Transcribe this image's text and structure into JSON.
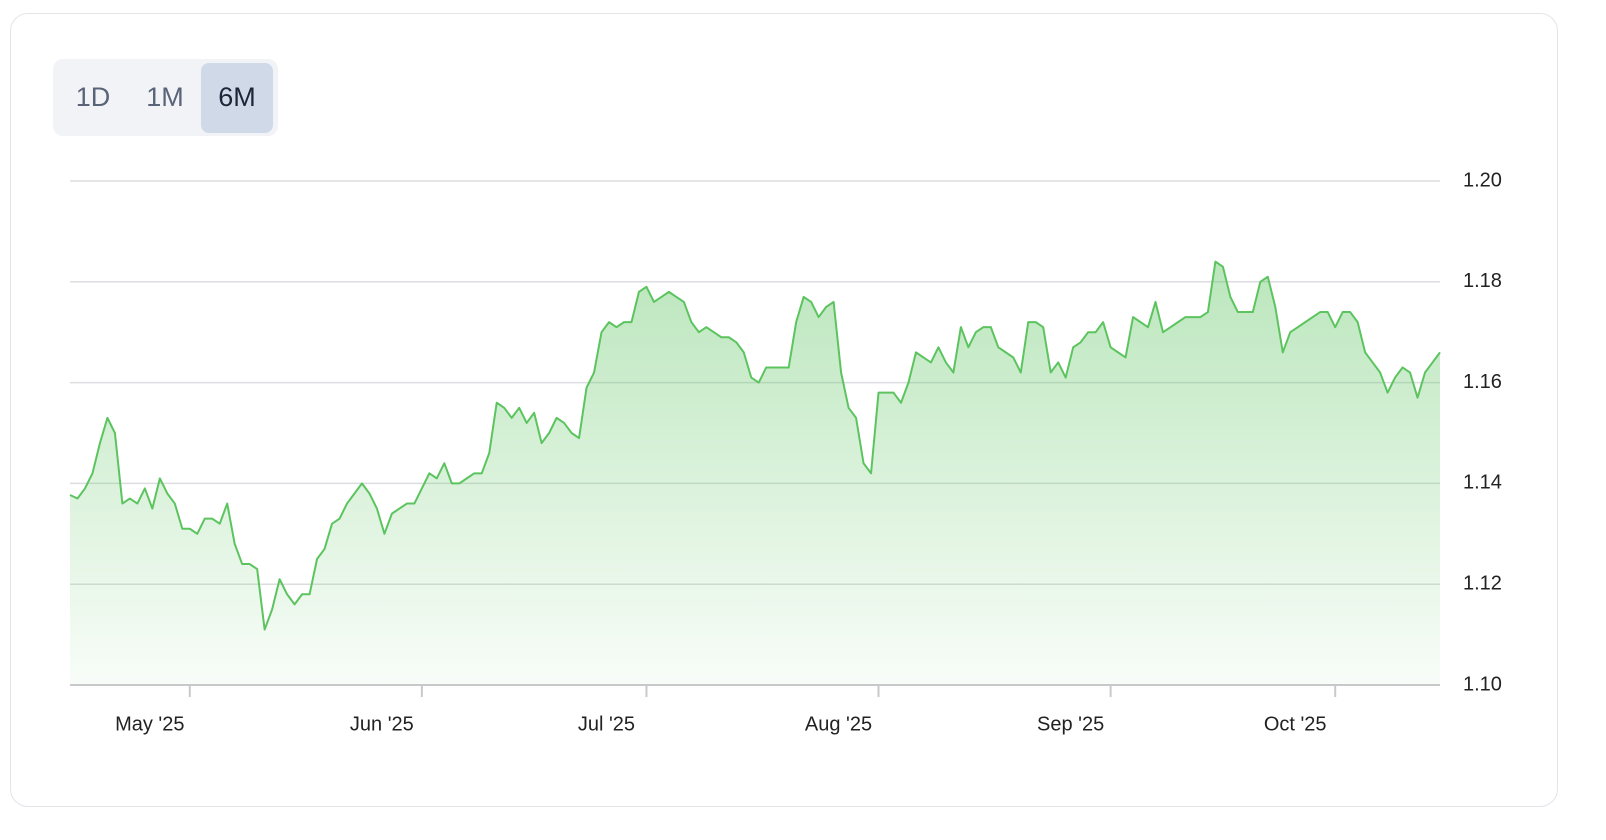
{
  "ui": {
    "range_buttons": [
      "1D",
      "1M",
      "6M"
    ],
    "active_index": 2
  },
  "chart_data": {
    "type": "area",
    "color": "#5cc45f",
    "grid": true,
    "ylim": [
      1.1,
      1.2
    ],
    "yticks": [
      {
        "value": 1.1,
        "label": "1.10"
      },
      1.12,
      1.14,
      1.16,
      1.18,
      {
        "value": 1.2,
        "label": "1.20"
      }
    ],
    "categories": [
      null,
      null,
      null,
      null,
      null,
      null,
      null,
      null,
      null,
      null,
      null,
      null,
      null,
      null,
      null,
      null,
      "May '25",
      null,
      null,
      null,
      null,
      null,
      null,
      null,
      null,
      null,
      null,
      null,
      null,
      null,
      null,
      null,
      null,
      null,
      null,
      null,
      null,
      null,
      null,
      null,
      null,
      null,
      null,
      null,
      null,
      null,
      null,
      "Jun '25",
      null,
      null,
      null,
      null,
      null,
      null,
      null,
      null,
      null,
      null,
      null,
      null,
      null,
      null,
      null,
      null,
      null,
      null,
      null,
      null,
      null,
      null,
      null,
      null,
      null,
      null,
      null,
      null,
      null,
      "Jul '25",
      null,
      null,
      null,
      null,
      null,
      null,
      null,
      null,
      null,
      null,
      null,
      null,
      null,
      null,
      null,
      null,
      null,
      null,
      null,
      null,
      null,
      null,
      null,
      null,
      null,
      null,
      null,
      null,
      null,
      null,
      "Aug '25",
      null,
      null,
      null,
      null,
      null,
      null,
      null,
      null,
      null,
      null,
      null,
      null,
      null,
      null,
      null,
      null,
      null,
      null,
      null,
      null,
      null,
      null,
      null,
      null,
      null,
      null,
      null,
      null,
      null,
      null,
      "Sep '25",
      null,
      null,
      null,
      null,
      null,
      null,
      null,
      null,
      null,
      null,
      null,
      null,
      null,
      null,
      null,
      null,
      null,
      null,
      null,
      null,
      null,
      null,
      null,
      null,
      null,
      null,
      null,
      null,
      null,
      "Oct '25",
      null,
      null,
      null,
      null,
      null,
      null,
      null,
      null,
      null,
      null,
      null,
      null,
      null,
      null
    ],
    "values": [
      1.1377,
      1.137,
      1.139,
      1.142,
      1.148,
      1.153,
      1.15,
      1.136,
      1.137,
      1.136,
      1.139,
      1.135,
      1.141,
      1.138,
      1.136,
      1.131,
      1.131,
      1.13,
      1.133,
      1.133,
      1.132,
      1.136,
      1.128,
      1.124,
      1.124,
      1.123,
      1.111,
      1.115,
      1.121,
      1.118,
      1.116,
      1.118,
      1.118,
      1.125,
      1.127,
      1.132,
      1.133,
      1.136,
      1.138,
      1.14,
      1.138,
      1.135,
      1.13,
      1.134,
      1.135,
      1.136,
      1.136,
      1.139,
      1.142,
      1.141,
      1.144,
      1.14,
      1.14,
      1.141,
      1.142,
      1.142,
      1.146,
      1.156,
      1.155,
      1.153,
      1.155,
      1.152,
      1.154,
      1.148,
      1.15,
      1.153,
      1.152,
      1.15,
      1.149,
      1.159,
      1.162,
      1.17,
      1.172,
      1.171,
      1.172,
      1.172,
      1.178,
      1.179,
      1.176,
      1.177,
      1.178,
      1.177,
      1.176,
      1.172,
      1.17,
      1.171,
      1.17,
      1.169,
      1.169,
      1.168,
      1.166,
      1.161,
      1.16,
      1.163,
      1.163,
      1.163,
      1.163,
      1.172,
      1.177,
      1.176,
      1.173,
      1.175,
      1.176,
      1.162,
      1.155,
      1.153,
      1.144,
      1.142,
      1.158,
      1.158,
      1.158,
      1.156,
      1.16,
      1.166,
      1.165,
      1.164,
      1.167,
      1.164,
      1.162,
      1.171,
      1.167,
      1.17,
      1.171,
      1.171,
      1.167,
      1.166,
      1.165,
      1.162,
      1.172,
      1.172,
      1.171,
      1.162,
      1.164,
      1.161,
      1.167,
      1.168,
      1.17,
      1.17,
      1.172,
      1.167,
      1.166,
      1.165,
      1.173,
      1.172,
      1.171,
      1.176,
      1.17,
      1.171,
      1.172,
      1.173,
      1.173,
      1.173,
      1.174,
      1.184,
      1.183,
      1.177,
      1.174,
      1.174,
      1.174,
      1.18,
      1.181,
      1.175,
      1.166,
      1.17,
      1.171,
      1.172,
      1.173,
      1.174,
      1.174,
      1.171,
      1.174,
      1.174,
      1.172,
      1.166,
      1.164,
      1.162,
      1.158,
      1.161,
      1.163,
      1.162,
      1.157,
      1.162,
      1.164,
      1.166
    ]
  }
}
